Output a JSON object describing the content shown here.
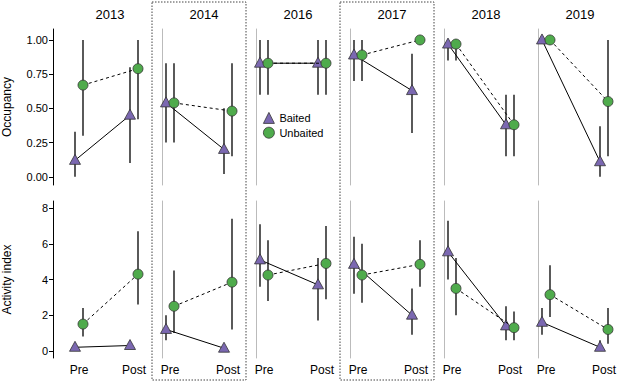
{
  "chart_data": [
    {
      "type": "line",
      "title": "2013",
      "y_label": "Occupancy",
      "categories": [
        "Pre",
        "Post"
      ],
      "ylim": [
        -0.06,
        1.08
      ],
      "yticks": [
        {
          "value": 0,
          "label": "0.00"
        },
        {
          "value": 0.25,
          "label": "0.25"
        },
        {
          "value": 0.5,
          "label": "0.50"
        },
        {
          "value": 0.75,
          "label": "0.75"
        },
        {
          "value": 1,
          "label": "1.00"
        }
      ],
      "tick_labels": "y",
      "series": [
        {
          "name": "Baited",
          "color": "#7b68b1",
          "marker": "triangle",
          "line_style": "solid",
          "values": [
            0.12,
            0.45
          ],
          "lower": [
            0.0,
            0.1
          ],
          "upper": [
            0.33,
            0.8
          ]
        },
        {
          "name": "Unbaited",
          "color": "#4fab4c",
          "marker": "circle",
          "line_style": "dashed",
          "values": [
            0.67,
            0.79
          ],
          "lower": [
            0.3,
            0.42
          ],
          "upper": [
            1.0,
            1.0
          ]
        }
      ]
    },
    {
      "type": "line",
      "title": "2014",
      "categories": [
        "Pre",
        "Post"
      ],
      "ylim": [
        -0.06,
        1.08
      ],
      "yticks": [
        {
          "value": 0,
          "label": "0.00"
        },
        {
          "value": 0.25,
          "label": "0.25"
        },
        {
          "value": 0.5,
          "label": "0.50"
        },
        {
          "value": 0.75,
          "label": "0.75"
        },
        {
          "value": 1,
          "label": "1.00"
        }
      ],
      "tick_labels": false,
      "series": [
        {
          "name": "Baited",
          "color": "#7b68b1",
          "marker": "triangle",
          "line_style": "solid",
          "values": [
            0.54,
            0.2
          ],
          "lower": [
            0.25,
            0.02
          ],
          "upper": [
            0.83,
            0.5
          ]
        },
        {
          "name": "Unbaited",
          "color": "#4fab4c",
          "marker": "circle",
          "line_style": "dashed",
          "values": [
            0.54,
            0.48
          ],
          "lower": [
            0.25,
            0.15
          ],
          "upper": [
            0.83,
            0.83
          ]
        }
      ]
    },
    {
      "type": "line",
      "title": "2016",
      "categories": [
        "Pre",
        "Post"
      ],
      "ylim": [
        -0.06,
        1.08
      ],
      "yticks": [
        {
          "value": 0,
          "label": "0.00"
        },
        {
          "value": 0.25,
          "label": "0.25"
        },
        {
          "value": 0.5,
          "label": "0.50"
        },
        {
          "value": 0.75,
          "label": "0.75"
        },
        {
          "value": 1,
          "label": "1.00"
        }
      ],
      "tick_labels": false,
      "legend": "center",
      "series": [
        {
          "name": "Baited",
          "color": "#7b68b1",
          "marker": "triangle",
          "line_style": "solid",
          "values": [
            0.83,
            0.83
          ],
          "lower": [
            0.6,
            0.6
          ],
          "upper": [
            1.0,
            1.0
          ]
        },
        {
          "name": "Unbaited",
          "color": "#4fab4c",
          "marker": "circle",
          "line_style": "dashed",
          "values": [
            0.83,
            0.83
          ],
          "lower": [
            0.6,
            0.6
          ],
          "upper": [
            1.0,
            1.0
          ]
        }
      ]
    },
    {
      "type": "line",
      "title": "2017",
      "categories": [
        "Pre",
        "Post"
      ],
      "ylim": [
        -0.06,
        1.08
      ],
      "yticks": [
        {
          "value": 0,
          "label": "0.00"
        },
        {
          "value": 0.25,
          "label": "0.25"
        },
        {
          "value": 0.5,
          "label": "0.50"
        },
        {
          "value": 0.75,
          "label": "0.75"
        },
        {
          "value": 1,
          "label": "1.00"
        }
      ],
      "tick_labels": false,
      "series": [
        {
          "name": "Baited",
          "color": "#7b68b1",
          "marker": "triangle",
          "line_style": "solid",
          "values": [
            0.89,
            0.63
          ],
          "lower": [
            0.7,
            0.32
          ],
          "upper": [
            1.0,
            0.9
          ]
        },
        {
          "name": "Unbaited",
          "color": "#4fab4c",
          "marker": "circle",
          "line_style": "dashed",
          "values": [
            0.89,
            1.0
          ],
          "lower": [
            0.7,
            1.0
          ],
          "upper": [
            1.0,
            1.0
          ]
        }
      ]
    },
    {
      "type": "line",
      "title": "2018",
      "categories": [
        "Pre",
        "Post"
      ],
      "ylim": [
        -0.06,
        1.08
      ],
      "yticks": [
        {
          "value": 0,
          "label": "0.00"
        },
        {
          "value": 0.25,
          "label": "0.25"
        },
        {
          "value": 0.5,
          "label": "0.50"
        },
        {
          "value": 0.75,
          "label": "0.75"
        },
        {
          "value": 1,
          "label": "1.00"
        }
      ],
      "tick_labels": false,
      "series": [
        {
          "name": "Baited",
          "color": "#7b68b1",
          "marker": "triangle",
          "line_style": "solid",
          "values": [
            0.97,
            0.38
          ],
          "lower": [
            0.85,
            0.15
          ],
          "upper": [
            1.0,
            0.6
          ]
        },
        {
          "name": "Unbaited",
          "color": "#4fab4c",
          "marker": "circle",
          "line_style": "dashed",
          "values": [
            0.97,
            0.38
          ],
          "lower": [
            0.85,
            0.15
          ],
          "upper": [
            1.0,
            0.6
          ]
        }
      ]
    },
    {
      "type": "line",
      "title": "2019",
      "categories": [
        "Pre",
        "Post"
      ],
      "ylim": [
        -0.06,
        1.08
      ],
      "yticks": [
        {
          "value": 0,
          "label": "0.00"
        },
        {
          "value": 0.25,
          "label": "0.25"
        },
        {
          "value": 0.5,
          "label": "0.50"
        },
        {
          "value": 0.75,
          "label": "0.75"
        },
        {
          "value": 1,
          "label": "1.00"
        }
      ],
      "tick_labels": false,
      "series": [
        {
          "name": "Baited",
          "color": "#7b68b1",
          "marker": "triangle",
          "line_style": "solid",
          "values": [
            1.0,
            0.11
          ],
          "lower": [
            1.0,
            0.0
          ],
          "upper": [
            1.0,
            0.37
          ]
        },
        {
          "name": "Unbaited",
          "color": "#4fab4c",
          "marker": "circle",
          "line_style": "dashed",
          "values": [
            1.0,
            0.55
          ],
          "lower": [
            1.0,
            0.15
          ],
          "upper": [
            1.0,
            1.0
          ]
        }
      ]
    },
    {
      "type": "line",
      "y_label": "Activity index",
      "categories": [
        "Pre",
        "Post"
      ],
      "ylim": [
        -0.4,
        8.4
      ],
      "yticks": [
        0,
        2,
        4,
        6,
        8
      ],
      "tick_labels": true,
      "series": [
        {
          "name": "Baited",
          "color": "#7b68b1",
          "marker": "triangle",
          "line_style": "solid",
          "values": [
            0.2,
            0.3
          ],
          "lower": [
            0.05,
            0.1
          ],
          "upper": [
            0.4,
            0.55
          ]
        },
        {
          "name": "Unbaited",
          "color": "#4fab4c",
          "marker": "circle",
          "line_style": "dashed",
          "values": [
            1.5,
            4.3
          ],
          "lower": [
            0.8,
            2.6
          ],
          "upper": [
            2.4,
            6.7
          ]
        }
      ]
    },
    {
      "type": "line",
      "categories": [
        "Pre",
        "Post"
      ],
      "ylim": [
        -0.4,
        8.4
      ],
      "yticks": [
        0,
        2,
        4,
        6,
        8
      ],
      "tick_labels": "x",
      "series": [
        {
          "name": "Baited",
          "color": "#7b68b1",
          "marker": "triangle",
          "line_style": "solid",
          "values": [
            1.2,
            0.15
          ],
          "lower": [
            0.6,
            0.0
          ],
          "upper": [
            2.0,
            0.3
          ]
        },
        {
          "name": "Unbaited",
          "color": "#4fab4c",
          "marker": "circle",
          "line_style": "dashed",
          "values": [
            2.5,
            3.85
          ],
          "lower": [
            1.0,
            1.2
          ],
          "upper": [
            4.5,
            7.4
          ]
        }
      ]
    },
    {
      "type": "line",
      "categories": [
        "Pre",
        "Post"
      ],
      "ylim": [
        -0.4,
        8.4
      ],
      "yticks": [
        0,
        2,
        4,
        6,
        8
      ],
      "tick_labels": "x",
      "series": [
        {
          "name": "Baited",
          "color": "#7b68b1",
          "marker": "triangle",
          "line_style": "solid",
          "values": [
            5.1,
            3.7
          ],
          "lower": [
            3.6,
            1.7
          ],
          "upper": [
            7.1,
            5.2
          ]
        },
        {
          "name": "Unbaited",
          "color": "#4fab4c",
          "marker": "circle",
          "line_style": "dashed",
          "values": [
            4.25,
            4.9
          ],
          "lower": [
            2.8,
            2.9
          ],
          "upper": [
            6.2,
            7.0
          ]
        }
      ]
    },
    {
      "type": "line",
      "categories": [
        "Pre",
        "Post"
      ],
      "ylim": [
        -0.4,
        8.4
      ],
      "yticks": [
        0,
        2,
        4,
        6,
        8
      ],
      "tick_labels": "x",
      "series": [
        {
          "name": "Baited",
          "color": "#7b68b1",
          "marker": "triangle",
          "line_style": "solid",
          "values": [
            4.85,
            2.0
          ],
          "lower": [
            3.2,
            0.9
          ],
          "upper": [
            6.4,
            3.5
          ]
        },
        {
          "name": "Unbaited",
          "color": "#4fab4c",
          "marker": "circle",
          "line_style": "dashed",
          "values": [
            4.25,
            4.85
          ],
          "lower": [
            2.7,
            3.6
          ],
          "upper": [
            6.0,
            6.2
          ]
        }
      ]
    },
    {
      "type": "line",
      "categories": [
        "Pre",
        "Post"
      ],
      "ylim": [
        -0.4,
        8.4
      ],
      "yticks": [
        0,
        2,
        4,
        6,
        8
      ],
      "tick_labels": "x",
      "series": [
        {
          "name": "Baited",
          "color": "#7b68b1",
          "marker": "triangle",
          "line_style": "solid",
          "values": [
            5.55,
            1.4
          ],
          "lower": [
            4.0,
            0.6
          ],
          "upper": [
            7.3,
            2.5
          ]
        },
        {
          "name": "Unbaited",
          "color": "#4fab4c",
          "marker": "circle",
          "line_style": "dashed",
          "values": [
            3.5,
            1.3
          ],
          "lower": [
            2.0,
            0.6
          ],
          "upper": [
            5.2,
            2.2
          ]
        }
      ]
    },
    {
      "type": "line",
      "categories": [
        "Pre",
        "Post"
      ],
      "ylim": [
        -0.4,
        8.4
      ],
      "yticks": [
        0,
        2,
        4,
        6,
        8
      ],
      "tick_labels": "x",
      "series": [
        {
          "name": "Baited",
          "color": "#7b68b1",
          "marker": "triangle",
          "line_style": "solid",
          "values": [
            1.6,
            0.2
          ],
          "lower": [
            0.9,
            0.0
          ],
          "upper": [
            2.4,
            0.6
          ]
        },
        {
          "name": "Unbaited",
          "color": "#4fab4c",
          "marker": "circle",
          "line_style": "dashed",
          "values": [
            3.15,
            1.2
          ],
          "lower": [
            1.9,
            0.4
          ],
          "upper": [
            4.8,
            2.4
          ]
        }
      ]
    }
  ]
}
